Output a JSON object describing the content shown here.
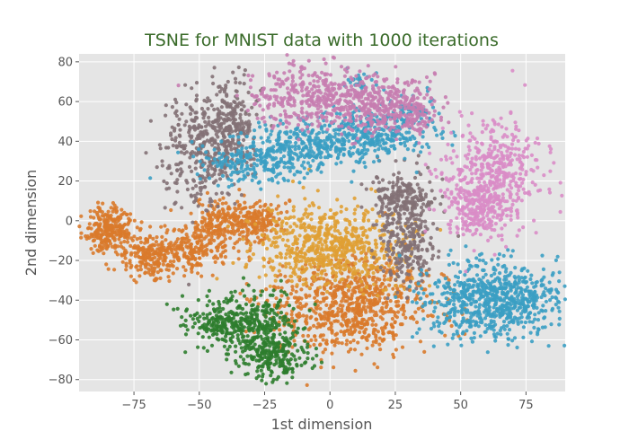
{
  "chart_data": {
    "type": "scatter",
    "title": "TSNE for MNIST data with 1000 iterations",
    "xlabel": "1st dimension",
    "ylabel": "2nd dimension",
    "xlim": [
      -96,
      90
    ],
    "ylim": [
      -86,
      84
    ],
    "x_ticks": [
      -75,
      -50,
      -25,
      0,
      25,
      50,
      75
    ],
    "y_ticks": [
      -80,
      -60,
      -40,
      -20,
      0,
      20,
      40,
      60,
      80
    ],
    "x_tick_labels": [
      "−75",
      "−50",
      "−25",
      "0",
      "25",
      "50",
      "75"
    ],
    "y_tick_labels": [
      "−80",
      "−60",
      "−40",
      "−20",
      "0",
      "20",
      "40",
      "60",
      "80"
    ],
    "grid": true,
    "background": "#e5e5e5",
    "legend": "none",
    "clusters": [
      {
        "color": "#d97a2b",
        "regions": [
          [
            -84,
            -5,
            5,
            6,
            260
          ],
          [
            -70,
            -18,
            5,
            6,
            180
          ],
          [
            -55,
            -15,
            6,
            6,
            180
          ],
          [
            -42,
            -3,
            6,
            7,
            220
          ],
          [
            -28,
            0,
            5,
            5,
            160
          ]
        ]
      },
      {
        "color": "#d97a2b",
        "regions": [
          [
            8,
            -42,
            15,
            12,
            800
          ]
        ]
      },
      {
        "color": "#e0a034",
        "regions": [
          [
            0,
            -12,
            14,
            10,
            650
          ]
        ]
      },
      {
        "color": "#2e7d2e",
        "regions": [
          [
            -42,
            -52,
            7,
            5,
            160
          ],
          [
            -28,
            -55,
            8,
            10,
            300
          ],
          [
            -20,
            -68,
            6,
            6,
            180
          ]
        ]
      },
      {
        "color": "#837176",
        "regions": [
          [
            -50,
            35,
            7,
            14,
            300
          ],
          [
            -38,
            47,
            5,
            12,
            250
          ]
        ]
      },
      {
        "color": "#837176",
        "regions": [
          [
            28,
            10,
            6,
            8,
            250
          ],
          [
            30,
            -15,
            5,
            9,
            200
          ]
        ]
      },
      {
        "color": "#3b9fc3",
        "regions": [
          [
            -28,
            30,
            12,
            5,
            220
          ],
          [
            -5,
            38,
            12,
            6,
            320
          ],
          [
            20,
            45,
            10,
            6,
            250
          ],
          [
            12,
            70,
            3,
            3,
            30
          ],
          [
            32,
            56,
            4,
            4,
            50
          ]
        ]
      },
      {
        "color": "#3b9fc3",
        "regions": [
          [
            62,
            -40,
            13,
            9,
            750
          ]
        ]
      },
      {
        "color": "#c77db0",
        "regions": [
          [
            -10,
            62,
            10,
            8,
            300
          ],
          [
            15,
            60,
            10,
            7,
            300
          ],
          [
            30,
            55,
            6,
            6,
            150
          ]
        ]
      },
      {
        "color": "#d98cc6",
        "regions": [
          [
            62,
            22,
            9,
            14,
            500
          ],
          [
            55,
            5,
            6,
            6,
            150
          ]
        ]
      }
    ]
  }
}
